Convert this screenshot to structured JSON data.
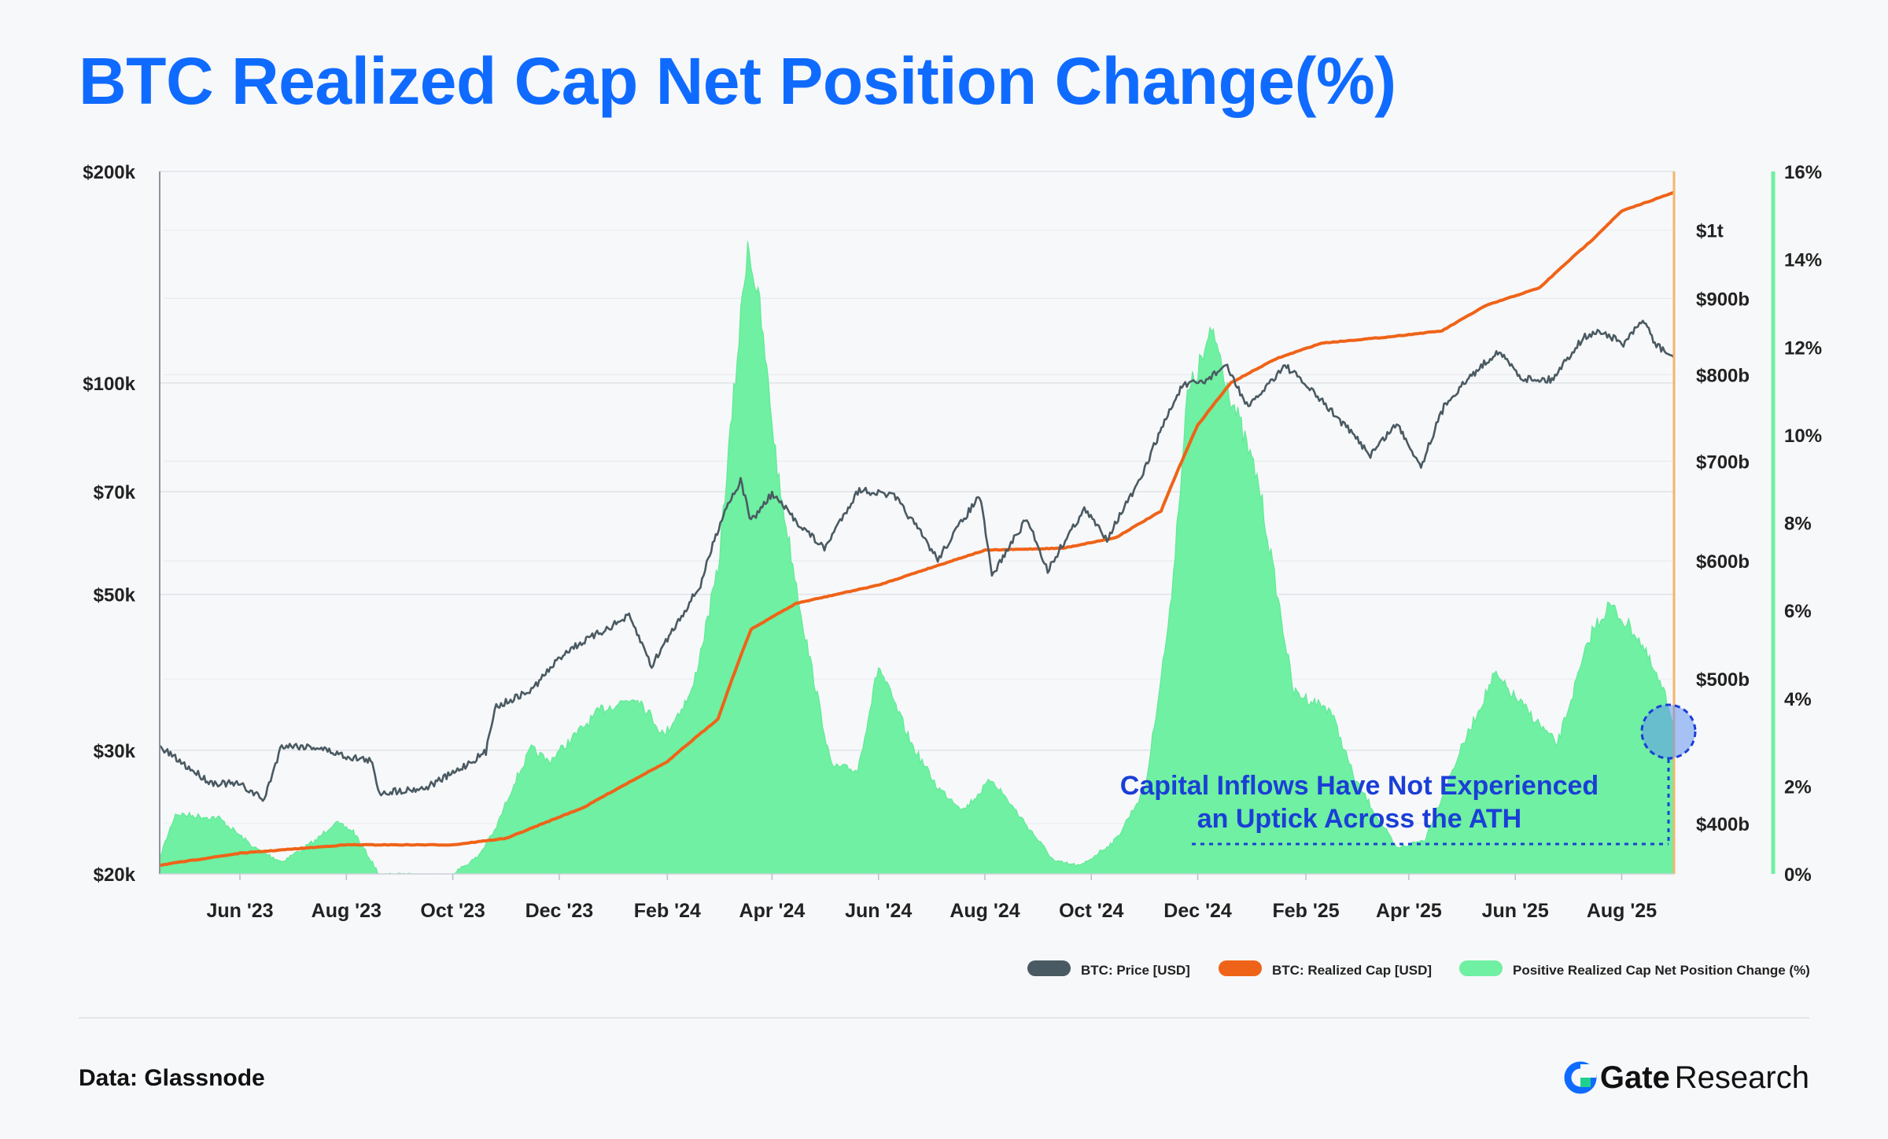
{
  "title": "BTC Realized Cap Net Position Change(%)",
  "footer": {
    "source": "Data: Glassnode",
    "brand_primary": "Gate",
    "brand_secondary": "Research"
  },
  "colors": {
    "title": "#0f6bff",
    "price": "#4a5a62",
    "realized_cap": "#ef6318",
    "net_position": "#6ff0a2",
    "annotation": "#1a3fd6"
  },
  "chart_data": {
    "type": "line",
    "x_tick_labels": [
      "Jun '23",
      "Aug '23",
      "Oct '23",
      "Dec '23",
      "Feb '24",
      "Apr '24",
      "Jun '24",
      "Aug '24",
      "Oct '24",
      "Dec '24",
      "Feb '25",
      "Apr '25",
      "Jun '25",
      "Aug '25"
    ],
    "x_ticks": [
      "2023-06-01",
      "2023-08-01",
      "2023-10-01",
      "2023-12-01",
      "2024-02-01",
      "2024-04-01",
      "2024-06-01",
      "2024-08-01",
      "2024-10-01",
      "2024-12-01",
      "2025-02-01",
      "2025-04-01",
      "2025-06-01",
      "2025-08-01"
    ],
    "x_range": [
      "2023-04-16",
      "2025-08-31"
    ],
    "left_axis": {
      "scale": "log",
      "range": [
        20000,
        200000
      ],
      "ticks": [
        20000,
        30000,
        50000,
        70000,
        100000,
        200000
      ],
      "tick_labels": [
        "$20k",
        "$30k",
        "$50k",
        "$70k",
        "$100k",
        "$200k"
      ]
    },
    "right_axis_realized_cap": {
      "scale": "log",
      "range": [
        370000000000,
        1095000000000
      ],
      "ticks": [
        400000000000,
        500000000000,
        600000000000,
        700000000000,
        800000000000,
        900000000000,
        1000000000000
      ],
      "tick_labels": [
        "$400b",
        "$500b",
        "$600b",
        "$700b",
        "$800b",
        "$900b",
        "$1t"
      ]
    },
    "right_axis_percent": {
      "scale": "linear",
      "range": [
        0,
        16
      ],
      "ticks": [
        0,
        2,
        4,
        6,
        8,
        10,
        12,
        14,
        16
      ],
      "tick_labels": [
        "0%",
        "2%",
        "4%",
        "6%",
        "8%",
        "10%",
        "12%",
        "14%",
        "16%"
      ]
    },
    "series": [
      {
        "name": "BTC: Price [USD]",
        "axis": "left",
        "kind": "line",
        "points": [
          [
            "2023-04-16",
            30300
          ],
          [
            "2023-05-01",
            28500
          ],
          [
            "2023-05-15",
            27000
          ],
          [
            "2023-06-01",
            26800
          ],
          [
            "2023-06-15",
            25500
          ],
          [
            "2023-06-25",
            30500
          ],
          [
            "2023-07-15",
            30300
          ],
          [
            "2023-08-01",
            29400
          ],
          [
            "2023-08-15",
            29000
          ],
          [
            "2023-08-20",
            26100
          ],
          [
            "2023-09-15",
            26500
          ],
          [
            "2023-10-01",
            27800
          ],
          [
            "2023-10-20",
            29800
          ],
          [
            "2023-10-25",
            34500
          ],
          [
            "2023-11-15",
            36500
          ],
          [
            "2023-12-05",
            41500
          ],
          [
            "2023-12-20",
            43500
          ],
          [
            "2024-01-10",
            46500
          ],
          [
            "2024-01-23",
            39500
          ],
          [
            "2024-02-10",
            47000
          ],
          [
            "2024-02-20",
            51500
          ],
          [
            "2024-03-05",
            66000
          ],
          [
            "2024-03-14",
            72500
          ],
          [
            "2024-03-20",
            63500
          ],
          [
            "2024-04-01",
            69500
          ],
          [
            "2024-04-15",
            63500
          ],
          [
            "2024-05-01",
            58000
          ],
          [
            "2024-05-21",
            70500
          ],
          [
            "2024-06-10",
            69000
          ],
          [
            "2024-07-05",
            56000
          ],
          [
            "2024-07-29",
            69000
          ],
          [
            "2024-08-05",
            53000
          ],
          [
            "2024-08-25",
            64000
          ],
          [
            "2024-09-06",
            54000
          ],
          [
            "2024-09-27",
            66000
          ],
          [
            "2024-10-10",
            60000
          ],
          [
            "2024-10-29",
            72500
          ],
          [
            "2024-11-12",
            88000
          ],
          [
            "2024-11-22",
            99000
          ],
          [
            "2024-12-05",
            100500
          ],
          [
            "2024-12-17",
            106000
          ],
          [
            "2024-12-30",
            92000
          ],
          [
            "2025-01-20",
            106000
          ],
          [
            "2025-02-05",
            97000
          ],
          [
            "2025-02-25",
            86000
          ],
          [
            "2025-03-10",
            79000
          ],
          [
            "2025-03-25",
            87500
          ],
          [
            "2025-04-08",
            76000
          ],
          [
            "2025-04-22",
            93500
          ],
          [
            "2025-05-08",
            103000
          ],
          [
            "2025-05-22",
            111000
          ],
          [
            "2025-06-05",
            101500
          ],
          [
            "2025-06-22",
            101000
          ],
          [
            "2025-07-10",
            116000
          ],
          [
            "2025-07-20",
            118500
          ],
          [
            "2025-08-02",
            113500
          ],
          [
            "2025-08-14",
            123000
          ],
          [
            "2025-08-20",
            113500
          ],
          [
            "2025-08-31",
            108500
          ]
        ]
      },
      {
        "name": "BTC: Realized Cap [USD]",
        "axis": "right",
        "kind": "line",
        "points": [
          [
            "2023-04-16",
            375000000000
          ],
          [
            "2023-06-01",
            382000000000
          ],
          [
            "2023-08-01",
            387000000000
          ],
          [
            "2023-10-01",
            387000000000
          ],
          [
            "2023-11-01",
            391000000000
          ],
          [
            "2023-12-15",
            410000000000
          ],
          [
            "2024-02-01",
            440000000000
          ],
          [
            "2024-03-01",
            470000000000
          ],
          [
            "2024-03-20",
            540000000000
          ],
          [
            "2024-04-15",
            562000000000
          ],
          [
            "2024-06-01",
            578000000000
          ],
          [
            "2024-08-01",
            610000000000
          ],
          [
            "2024-09-15",
            612000000000
          ],
          [
            "2024-10-15",
            622000000000
          ],
          [
            "2024-11-10",
            648000000000
          ],
          [
            "2024-12-01",
            740000000000
          ],
          [
            "2024-12-20",
            790000000000
          ],
          [
            "2025-01-15",
            820000000000
          ],
          [
            "2025-02-10",
            840000000000
          ],
          [
            "2025-03-20",
            848000000000
          ],
          [
            "2025-04-20",
            856000000000
          ],
          [
            "2025-05-15",
            890000000000
          ],
          [
            "2025-06-15",
            915000000000
          ],
          [
            "2025-07-15",
            985000000000
          ],
          [
            "2025-08-01",
            1030000000000
          ],
          [
            "2025-08-31",
            1060000000000
          ]
        ]
      },
      {
        "name": "Positive Realized Cap Net Position Change (%)",
        "axis": "right_percent",
        "kind": "area",
        "points": [
          [
            "2023-04-16",
            0.4
          ],
          [
            "2023-04-25",
            1.4
          ],
          [
            "2023-05-20",
            1.3
          ],
          [
            "2023-06-10",
            0.6
          ],
          [
            "2023-06-25",
            0.3
          ],
          [
            "2023-07-15",
            0.8
          ],
          [
            "2023-07-25",
            1.2
          ],
          [
            "2023-08-05",
            1.0
          ],
          [
            "2023-08-20",
            0.0
          ],
          [
            "2023-09-30",
            0.0
          ],
          [
            "2023-10-15",
            0.4
          ],
          [
            "2023-10-25",
            1.0
          ],
          [
            "2023-11-05",
            2.1
          ],
          [
            "2023-11-15",
            2.9
          ],
          [
            "2023-11-25",
            2.6
          ],
          [
            "2023-12-10",
            3.2
          ],
          [
            "2023-12-25",
            3.8
          ],
          [
            "2024-01-15",
            4.1
          ],
          [
            "2024-01-30",
            3.2
          ],
          [
            "2024-02-15",
            4.2
          ],
          [
            "2024-03-01",
            7.0
          ],
          [
            "2024-03-10",
            11.0
          ],
          [
            "2024-03-18",
            14.6
          ],
          [
            "2024-03-25",
            13.0
          ],
          [
            "2024-04-05",
            9.0
          ],
          [
            "2024-04-20",
            5.5
          ],
          [
            "2024-05-05",
            2.5
          ],
          [
            "2024-05-20",
            2.4
          ],
          [
            "2024-06-01",
            4.8
          ],
          [
            "2024-06-20",
            3.0
          ],
          [
            "2024-07-05",
            2.0
          ],
          [
            "2024-07-20",
            1.5
          ],
          [
            "2024-08-05",
            2.2
          ],
          [
            "2024-08-20",
            1.4
          ],
          [
            "2024-09-10",
            0.3
          ],
          [
            "2024-09-25",
            0.2
          ],
          [
            "2024-10-15",
            0.8
          ],
          [
            "2024-11-01",
            2.0
          ],
          [
            "2024-11-15",
            6.0
          ],
          [
            "2024-11-25",
            11.0
          ],
          [
            "2024-12-10",
            12.5
          ],
          [
            "2024-12-20",
            11.0
          ],
          [
            "2025-01-05",
            9.0
          ],
          [
            "2025-01-25",
            4.2
          ],
          [
            "2025-02-15",
            3.8
          ],
          [
            "2025-03-01",
            2.2
          ],
          [
            "2025-03-25",
            0.6
          ],
          [
            "2025-04-10",
            0.8
          ],
          [
            "2025-04-30",
            2.8
          ],
          [
            "2025-05-20",
            4.6
          ],
          [
            "2025-06-05",
            3.9
          ],
          [
            "2025-06-25",
            3.0
          ],
          [
            "2025-07-15",
            5.6
          ],
          [
            "2025-07-25",
            6.2
          ],
          [
            "2025-08-10",
            5.5
          ],
          [
            "2025-08-25",
            4.2
          ],
          [
            "2025-08-31",
            3.5
          ]
        ]
      }
    ],
    "legend": [
      "BTC: Price [USD]",
      "BTC: Realized Cap [USD]",
      "Positive Realized Cap Net Position Change (%)"
    ],
    "legend_position": "bottom-right",
    "grid": true,
    "annotation": {
      "text_line_1": "Capital Inflows Have Not Experienced",
      "text_line_2": "an Uptick Across the ATH"
    }
  }
}
